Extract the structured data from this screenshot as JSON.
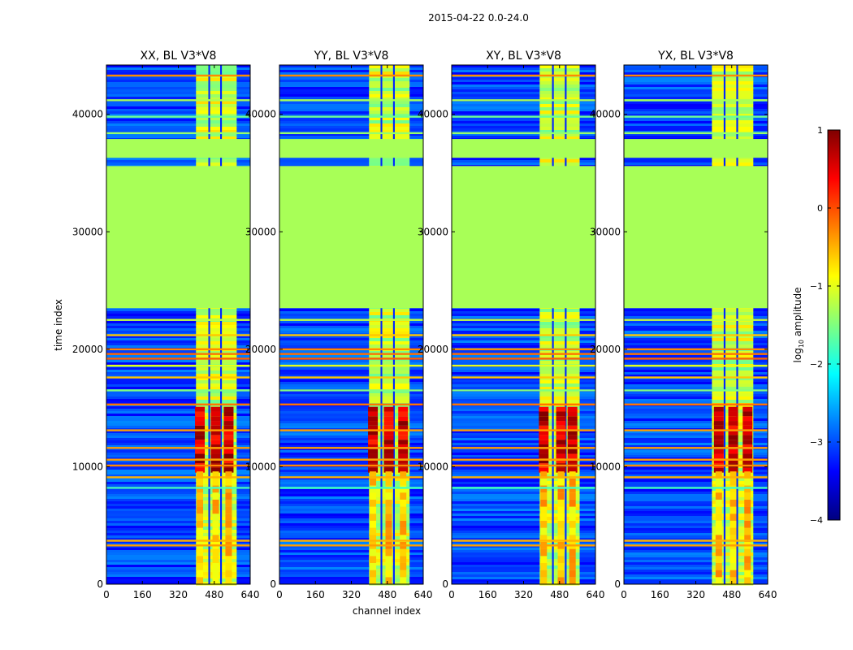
{
  "figure": {
    "suptitle": "2015-04-22 0.0-24.0"
  },
  "chart_data": {
    "type": "heatmap",
    "xlabel": "channel index",
    "ylabel": "time index",
    "xlim": [
      0,
      640
    ],
    "ylim": [
      0,
      44200
    ],
    "x_ticks": [
      0,
      160,
      320,
      480,
      640
    ],
    "y_ticks": [
      0,
      10000,
      20000,
      30000,
      40000
    ],
    "panels": [
      {
        "title": "XX, BL V3*V8",
        "active_cols": [
          0.623,
          0.709,
          0.791,
          0.906
        ],
        "strong_cols": [
          0.65,
          0.76,
          0.85
        ]
      },
      {
        "title": "YY, BL V3*V8",
        "active_cols": [
          0.623,
          0.703,
          0.79,
          0.905
        ],
        "strong_cols": [
          0.65,
          0.76,
          0.86
        ]
      },
      {
        "title": "XY, BL V3*V8",
        "active_cols": [
          0.612,
          0.698,
          0.787,
          0.89
        ],
        "strong_cols": [
          0.64,
          0.76,
          0.84
        ]
      },
      {
        "title": "YX, BL V3*V8",
        "active_cols": [
          0.612,
          0.694,
          0.782,
          0.9
        ],
        "strong_cols": [
          0.66,
          0.76,
          0.86
        ]
      }
    ],
    "flagged_block": {
      "from": 23500,
      "to": 35600,
      "level": -1.3
    },
    "flagged_block_2": {
      "from": 36300,
      "to": 37900,
      "level": -1.3
    },
    "horizontal_lines": [
      {
        "y": 3300,
        "level": -0.4
      },
      {
        "y": 3700,
        "level": -0.5
      },
      {
        "y": 8200,
        "level": -1.8
      },
      {
        "y": 9100,
        "level": -0.5
      },
      {
        "y": 10100,
        "level": -0.3
      },
      {
        "y": 10600,
        "level": -0.4
      },
      {
        "y": 11600,
        "level": -0.4
      },
      {
        "y": 13100,
        "level": -0.4
      },
      {
        "y": 15300,
        "level": -0.2
      },
      {
        "y": 16500,
        "level": -1.5
      },
      {
        "y": 17600,
        "level": -0.6
      },
      {
        "y": 18600,
        "level": -1.0
      },
      {
        "y": 19200,
        "level": -0.1
      },
      {
        "y": 19600,
        "level": -0.2
      },
      {
        "y": 20000,
        "level": -0.3
      },
      {
        "y": 21200,
        "level": -0.6
      },
      {
        "y": 22500,
        "level": -1.2
      },
      {
        "y": 38400,
        "level": -1.4
      },
      {
        "y": 39800,
        "level": -1.6
      },
      {
        "y": 41200,
        "level": -1.3
      },
      {
        "y": 43300,
        "level": -0.3
      }
    ],
    "colorbar": {
      "label": "log10 amplitude",
      "label_prefix": "log",
      "label_sub": "10",
      "label_suffix": " amplitude",
      "min": -4,
      "max": 1,
      "ticks": [
        "1",
        "0",
        "−1",
        "−2",
        "−3",
        "−4"
      ],
      "tick_values": [
        1,
        0,
        -1,
        -2,
        -3,
        -4
      ]
    }
  }
}
